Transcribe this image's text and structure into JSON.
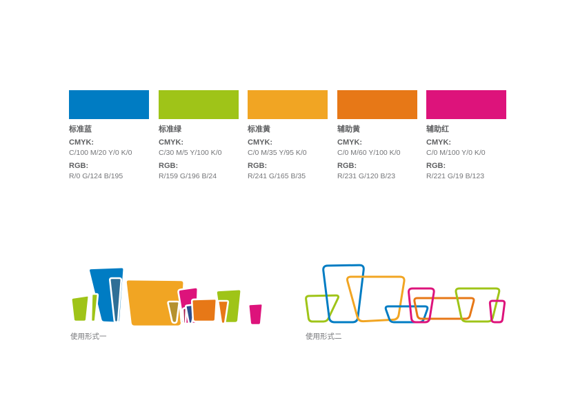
{
  "colors": {
    "blue": "#007CC3",
    "green": "#9FC418",
    "yellow": "#F1A523",
    "orange": "#E77817",
    "magenta": "#DD137B",
    "steelBlue": "#2F6F96",
    "olive": "#B5922F",
    "navy": "#2C4C8C",
    "maroon": "#A6194B"
  },
  "swatches": [
    {
      "name": "标准蓝",
      "cmyk_label": "CMYK:",
      "cmyk": "C/100  M/20  Y/0  K/0",
      "rgb_label": "RGB:",
      "rgb": "R/0  G/124  B/195"
    },
    {
      "name": "标准绿",
      "cmyk_label": "CMYK:",
      "cmyk": "C/30  M/5  Y/100  K/0",
      "rgb_label": "RGB:",
      "rgb": "R/159  G/196  B/24"
    },
    {
      "name": "标准黄",
      "cmyk_label": "CMYK:",
      "cmyk": "C/0  M/35  Y/95  K/0",
      "rgb_label": "RGB:",
      "rgb": "R/241  G/165  B/35"
    },
    {
      "name": "辅助黄",
      "cmyk_label": "CMYK:",
      "cmyk": "C/0  M/60  Y/100  K/0",
      "rgb_label": "RGB:",
      "rgb": "R/231  G/120  B/23"
    },
    {
      "name": "辅助红",
      "cmyk_label": "CMYK:",
      "cmyk": "C/0  M/100  Y/0  K/0",
      "rgb_label": "RGB:",
      "rgb": "R/221  G/19  B/123"
    }
  ],
  "usage_forms": [
    {
      "label": "使用形式一"
    },
    {
      "label": "使用形式二"
    }
  ]
}
